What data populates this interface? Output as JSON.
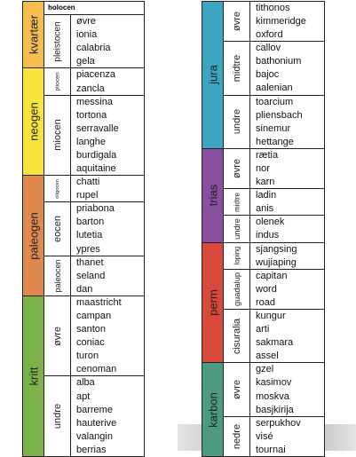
{
  "columns": [
    {
      "periods": [
        {
          "name": "kvartær",
          "color": "#f5bd4f",
          "epochs": [
            {
              "name": "holocen",
              "stages": []
            },
            {
              "name": "pleistocen",
              "stages": [
                "øvre",
                "ionia",
                "calabria",
                "gela"
              ]
            }
          ]
        },
        {
          "name": "neogen",
          "color": "#f6e43c",
          "epochs": [
            {
              "name": "pliocen",
              "stages": [
                "piacenza",
                "zancla"
              ]
            },
            {
              "name": "miocen",
              "stages": [
                "messina",
                "tortona",
                "serravalle",
                "langhe",
                "burdigala",
                "aquitaine"
              ]
            }
          ]
        },
        {
          "name": "paleogen",
          "color": "#e0894f",
          "epochs": [
            {
              "name": "oligocen",
              "stages": [
                "chatti",
                "rupel"
              ]
            },
            {
              "name": "eocen",
              "stages": [
                "priabona",
                "barton",
                "lutetia",
                "ypres"
              ]
            },
            {
              "name": "paleocen",
              "stages": [
                "thanet",
                "seland",
                "dan"
              ]
            }
          ]
        },
        {
          "name": "kritt",
          "color": "#7db24b",
          "epochs": [
            {
              "name": "øvre",
              "stages": [
                "maastricht",
                "campan",
                "santon",
                "coniac",
                "turon",
                "cenoman"
              ]
            },
            {
              "name": "undre",
              "stages": [
                "alba",
                "apt",
                "barreme",
                "hauterive",
                "valangin",
                "berrias"
              ]
            }
          ]
        }
      ]
    },
    {
      "periods": [
        {
          "name": "jura",
          "color": "#3ca5bf",
          "epochs": [
            {
              "name": "øvre",
              "stages": [
                "tithonos",
                "kimmeridge",
                "oxford"
              ]
            },
            {
              "name": "midtre",
              "stages": [
                "callov",
                "bathonium",
                "bajoc",
                "aalenian"
              ]
            },
            {
              "name": "undre",
              "stages": [
                "toarcium",
                "pliensbach",
                "sinemur",
                "hettange"
              ]
            }
          ]
        },
        {
          "name": "trias",
          "color": "#8b4f9f",
          "epochs": [
            {
              "name": "øvre",
              "stages": [
                "rætia",
                "nor",
                "karn"
              ]
            },
            {
              "name": "midtre",
              "stages": [
                "ladin",
                "anis"
              ]
            },
            {
              "name": "undre",
              "stages": [
                "olenek",
                "indus"
              ]
            }
          ]
        },
        {
          "name": "perm",
          "color": "#d8493b",
          "epochs": [
            {
              "name": "loping",
              "stages": [
                "sjangsing",
                "wujiaping"
              ]
            },
            {
              "name": "guadalup",
              "stages": [
                "capitan",
                "word",
                "road"
              ]
            },
            {
              "name": "cisuralia",
              "stages": [
                "kungur",
                "arti",
                "sakmara",
                "assel"
              ]
            }
          ]
        },
        {
          "name": "karbon",
          "color": "#4c9a7f",
          "epochs": [
            {
              "name": "øvre",
              "stages": [
                "gzel",
                "kasimov",
                "moskva",
                "basjkirija"
              ]
            },
            {
              "name": "nedre",
              "stages": [
                "serpukhov",
                "visé",
                "tournai"
              ]
            }
          ]
        }
      ]
    }
  ]
}
